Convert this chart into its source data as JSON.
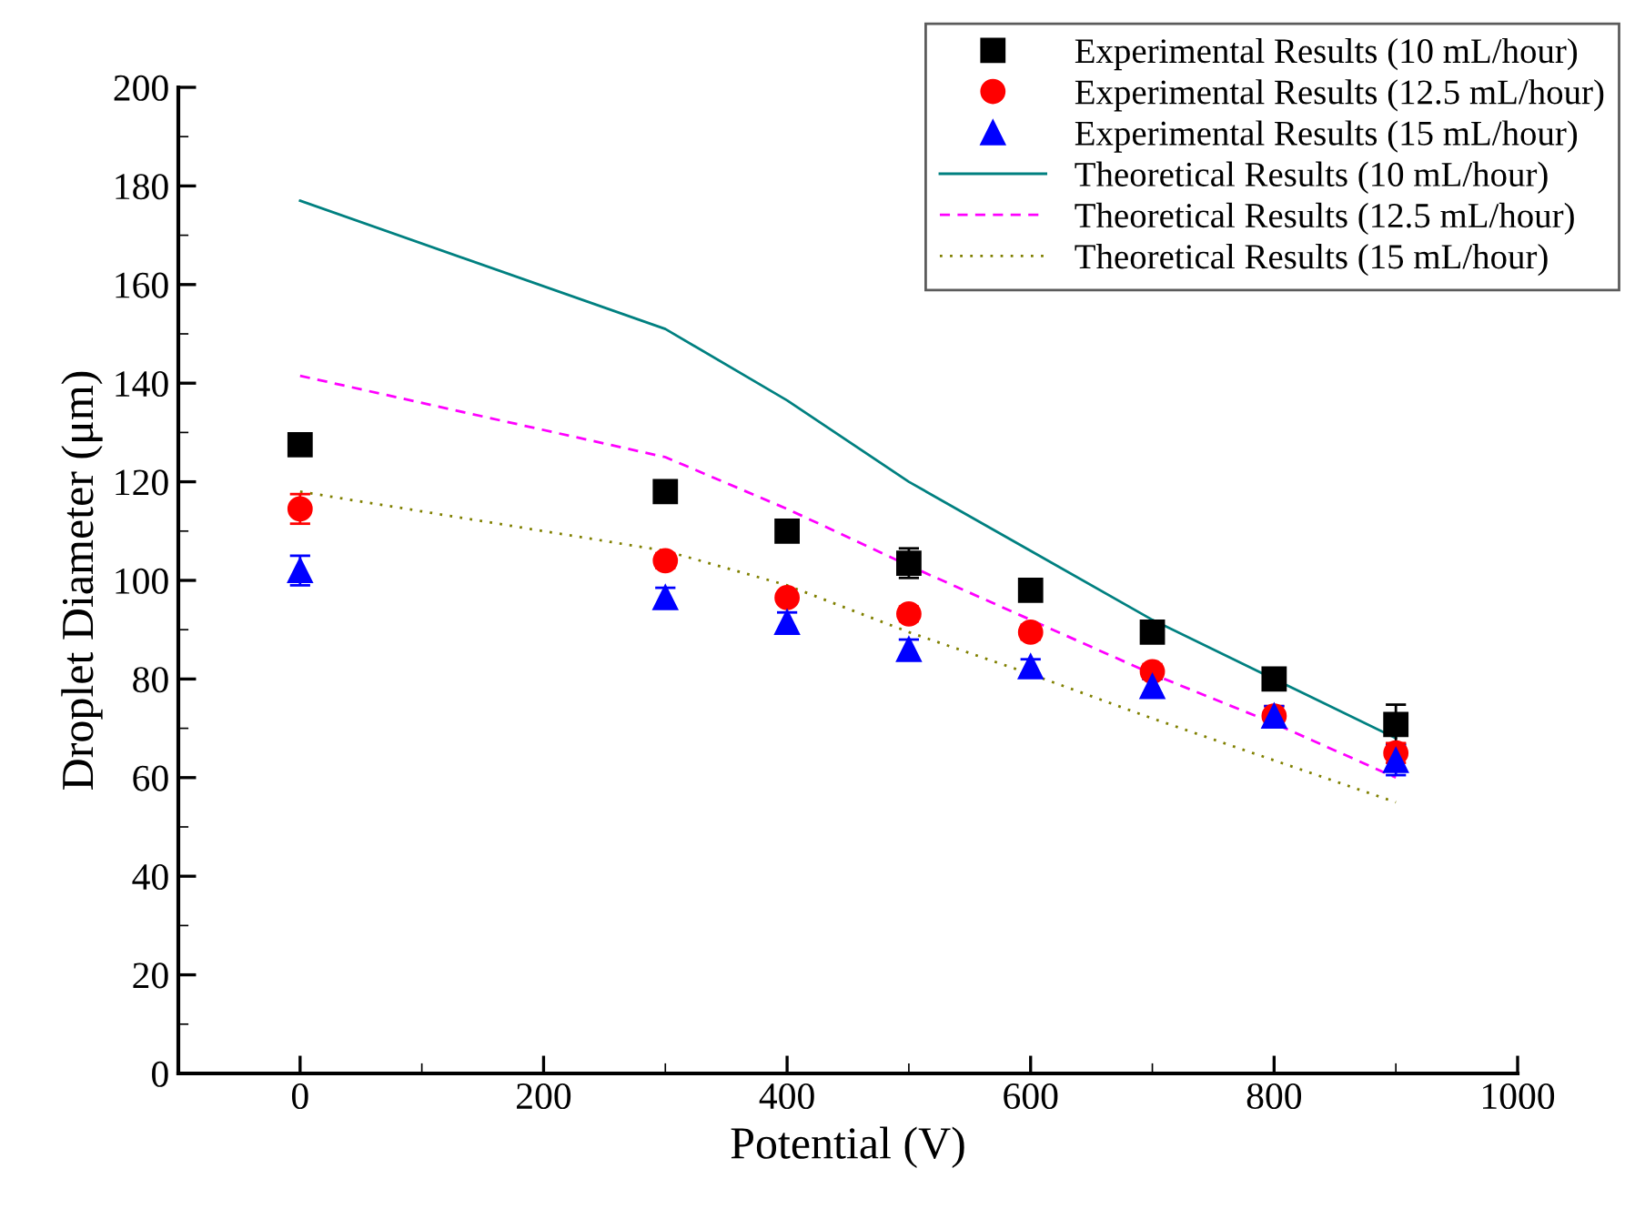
{
  "chart_data": {
    "type": "scatter",
    "xlabel": "Potential (V)",
    "ylabel": "Droplet Diameter (μm)",
    "x": [
      0,
      300,
      400,
      500,
      600,
      700,
      800,
      900
    ],
    "xlim": [
      -100,
      1000
    ],
    "xticks": [
      0,
      200,
      400,
      600,
      800,
      1000
    ],
    "ylim": [
      0,
      200
    ],
    "yticks": [
      0,
      20,
      40,
      60,
      80,
      100,
      120,
      140,
      160,
      180,
      200
    ],
    "grid": false,
    "legend": "top right",
    "series": [
      {
        "name": "Experimental Results (10 mL/hour)",
        "marker": "square",
        "color": "#000000",
        "values": [
          127.5,
          118,
          110,
          103.5,
          98,
          89.5,
          80,
          70.8
        ],
        "errors": [
          1,
          1.5,
          1,
          3,
          1.5,
          1,
          1,
          4
        ]
      },
      {
        "name": "Experimental Results (12.5 mL/hour)",
        "marker": "circle",
        "color": "#ff0000",
        "values": [
          114.5,
          104,
          96.5,
          93.2,
          89.5,
          81.5,
          72.5,
          65
        ],
        "errors": [
          3,
          1.5,
          1,
          1.5,
          1.5,
          1.5,
          2,
          2
        ]
      },
      {
        "name": "Experimental Results (15 mL/hour)",
        "marker": "triangle",
        "color": "#0000ff",
        "values": [
          102,
          96.5,
          91.5,
          86,
          82.5,
          78.5,
          72.5,
          63.5
        ],
        "errors": [
          3,
          2,
          2,
          2,
          1.5,
          1.5,
          2,
          3
        ]
      },
      {
        "name": "Theoretical Results (10 mL/hour)",
        "type": "line",
        "line_style": "solid",
        "color": "#008080",
        "values": [
          177,
          151,
          136.5,
          120,
          106,
          92,
          80,
          68
        ]
      },
      {
        "name": "Theoretical Results (12.5 mL/hour)",
        "type": "line",
        "line_style": "dashed",
        "color": "#ff00ff",
        "values": [
          141.5,
          125,
          114.5,
          103,
          92,
          81,
          71,
          60
        ]
      },
      {
        "name": "Theoretical Results (15 mL/hour)",
        "type": "line",
        "line_style": "dotted",
        "color": "#808000",
        "values": [
          118,
          106,
          99,
          89.5,
          81,
          72,
          63.5,
          55
        ]
      }
    ]
  }
}
